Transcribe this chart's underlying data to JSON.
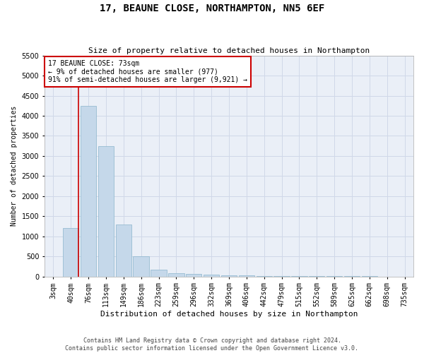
{
  "title": "17, BEAUNE CLOSE, NORTHAMPTON, NN5 6EF",
  "subtitle": "Size of property relative to detached houses in Northampton",
  "xlabel": "Distribution of detached houses by size in Northampton",
  "ylabel": "Number of detached properties",
  "footer_line1": "Contains HM Land Registry data © Crown copyright and database right 2024.",
  "footer_line2": "Contains public sector information licensed under the Open Government Licence v3.0.",
  "annotation_title": "17 BEAUNE CLOSE: 73sqm",
  "annotation_line2": "← 9% of detached houses are smaller (977)",
  "annotation_line3": "91% of semi-detached houses are larger (9,921) →",
  "bar_color": "#c5d8ea",
  "bar_edge_color": "#8ab4cc",
  "marker_color": "#cc0000",
  "annotation_box_edge": "#cc0000",
  "bins": [
    "3sqm",
    "40sqm",
    "76sqm",
    "113sqm",
    "149sqm",
    "186sqm",
    "223sqm",
    "259sqm",
    "296sqm",
    "332sqm",
    "369sqm",
    "406sqm",
    "442sqm",
    "479sqm",
    "515sqm",
    "552sqm",
    "589sqm",
    "625sqm",
    "662sqm",
    "698sqm",
    "735sqm"
  ],
  "values": [
    0,
    1200,
    4250,
    3250,
    1300,
    500,
    175,
    75,
    55,
    50,
    30,
    20,
    10,
    5,
    5,
    3,
    2,
    1,
    1,
    0,
    0
  ],
  "ylim": [
    0,
    5500
  ],
  "yticks": [
    0,
    500,
    1000,
    1500,
    2000,
    2500,
    3000,
    3500,
    4000,
    4500,
    5000,
    5500
  ],
  "grid_color": "#d0d8e8",
  "background_color": "#eaeff7",
  "title_fontsize": 10,
  "subtitle_fontsize": 8,
  "xlabel_fontsize": 8,
  "ylabel_fontsize": 7,
  "tick_fontsize": 7,
  "footer_fontsize": 6,
  "annotation_fontsize": 7
}
